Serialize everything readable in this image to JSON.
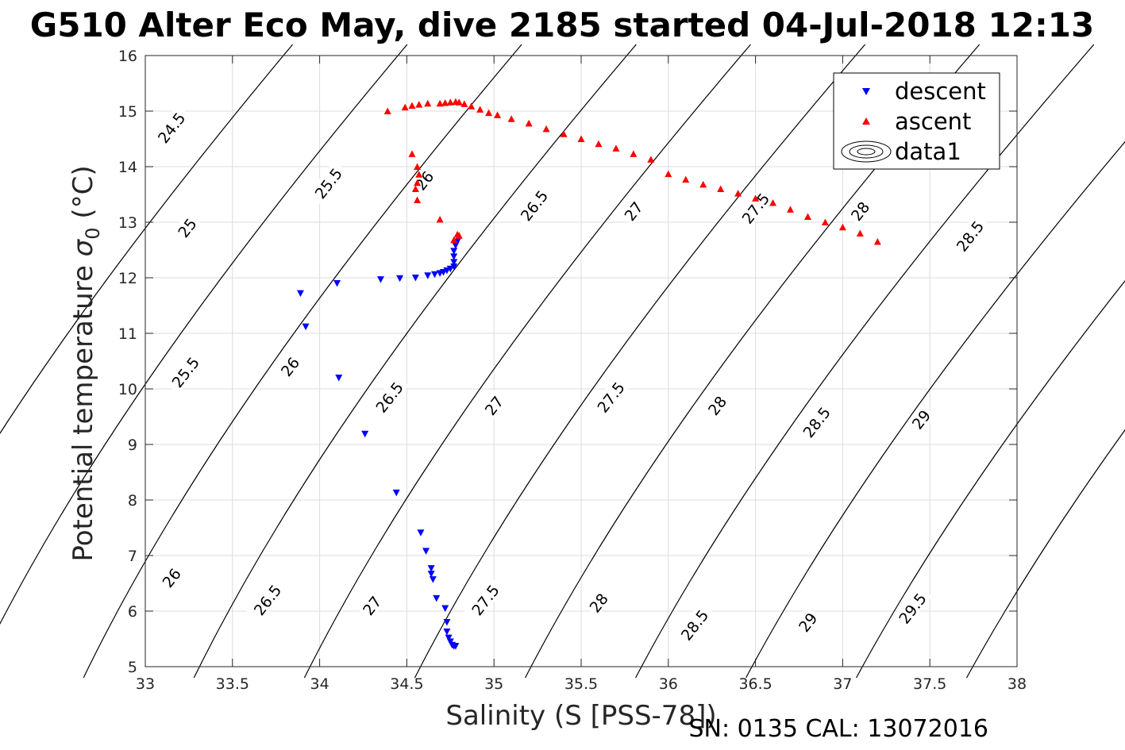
{
  "chart_data": {
    "type": "scatter",
    "title": "G510 Alter Eco May, dive 2185 started 04-Jul-2018 12:13",
    "xlabel": "Salinity (S [PSS-78])",
    "ylabel": "Potential temperature σ 0 (°C)",
    "ylabel_parts": {
      "main": "Potential temperature ",
      "sigma": "σ",
      "sub": "0",
      "unit": " (°C)"
    },
    "footer": "SN: 0135  CAL: 13072016",
    "xlim": [
      33,
      38
    ],
    "ylim": [
      5,
      16
    ],
    "x_ticks": [
      "33",
      "33.5",
      "34",
      "34.5",
      "35",
      "35.5",
      "36",
      "36.5",
      "37",
      "37.5",
      "38"
    ],
    "y_ticks": [
      "5",
      "6",
      "7",
      "8",
      "9",
      "10",
      "11",
      "12",
      "13",
      "14",
      "15",
      "16"
    ],
    "grid": true,
    "legend": {
      "placement": "top-right",
      "entries": [
        {
          "label": "descent",
          "marker": "triangle-down",
          "color": "#0000ff"
        },
        {
          "label": "ascent",
          "marker": "triangle-up",
          "color": "#ff0000"
        },
        {
          "label": "data1",
          "marker": "contour",
          "color": "#000000"
        }
      ]
    },
    "density_contours": {
      "levels": [
        24.5,
        25,
        25.5,
        26,
        26.5,
        27,
        27.5,
        28,
        28.5,
        29,
        29.5
      ],
      "labels": [
        {
          "text": "24.5",
          "x": 33.15,
          "y": 14.7
        },
        {
          "text": "25",
          "x": 33.24,
          "y": 12.9
        },
        {
          "text": "25.5",
          "x": 33.23,
          "y": 10.3
        },
        {
          "text": "26",
          "x": 33.15,
          "y": 6.6
        },
        {
          "text": "25.5",
          "x": 34.05,
          "y": 13.7
        },
        {
          "text": "26",
          "x": 34.6,
          "y": 13.75
        },
        {
          "text": "26.5",
          "x": 35.23,
          "y": 13.3
        },
        {
          "text": "27",
          "x": 35.8,
          "y": 13.2
        },
        {
          "text": "27.5",
          "x": 36.5,
          "y": 13.25
        },
        {
          "text": "28",
          "x": 37.1,
          "y": 13.2
        },
        {
          "text": "28.5",
          "x": 37.73,
          "y": 12.75
        },
        {
          "text": "26",
          "x": 33.83,
          "y": 10.4
        },
        {
          "text": "26.5",
          "x": 34.4,
          "y": 9.85
        },
        {
          "text": "27",
          "x": 35.0,
          "y": 9.7
        },
        {
          "text": "27.5",
          "x": 35.67,
          "y": 9.85
        },
        {
          "text": "28",
          "x": 36.28,
          "y": 9.7
        },
        {
          "text": "28.5",
          "x": 36.85,
          "y": 9.4
        },
        {
          "text": "29",
          "x": 37.45,
          "y": 9.45
        },
        {
          "text": "26.5",
          "x": 33.7,
          "y": 6.2
        },
        {
          "text": "27",
          "x": 34.3,
          "y": 6.1
        },
        {
          "text": "27.5",
          "x": 34.95,
          "y": 6.2
        },
        {
          "text": "28",
          "x": 35.6,
          "y": 6.15
        },
        {
          "text": "28.5",
          "x": 36.15,
          "y": 5.75
        },
        {
          "text": "29",
          "x": 36.8,
          "y": 5.8
        },
        {
          "text": "29.5",
          "x": 37.4,
          "y": 6.05
        }
      ]
    },
    "series": [
      {
        "name": "descent",
        "marker": "triangle-down",
        "color": "#0000ff",
        "points": [
          [
            33.89,
            11.72
          ],
          [
            33.92,
            11.12
          ],
          [
            34.1,
            11.9
          ],
          [
            34.11,
            10.2
          ],
          [
            34.26,
            9.19
          ],
          [
            34.35,
            11.97
          ],
          [
            34.46,
            11.99
          ],
          [
            34.55,
            12.0
          ],
          [
            34.62,
            12.04
          ],
          [
            34.66,
            12.06
          ],
          [
            34.69,
            12.08
          ],
          [
            34.71,
            12.1
          ],
          [
            34.73,
            12.13
          ],
          [
            34.75,
            12.16
          ],
          [
            34.77,
            12.2
          ],
          [
            34.77,
            12.28
          ],
          [
            34.77,
            12.38
          ],
          [
            34.77,
            12.48
          ],
          [
            34.78,
            12.58
          ],
          [
            34.79,
            12.65
          ],
          [
            34.44,
            8.13
          ],
          [
            34.58,
            7.41
          ],
          [
            34.61,
            7.08
          ],
          [
            34.64,
            6.77
          ],
          [
            34.64,
            6.67
          ],
          [
            34.65,
            6.57
          ],
          [
            34.67,
            6.23
          ],
          [
            34.72,
            6.05
          ],
          [
            34.73,
            5.8
          ],
          [
            34.73,
            5.63
          ],
          [
            34.74,
            5.52
          ],
          [
            34.75,
            5.45
          ],
          [
            34.76,
            5.39
          ],
          [
            34.77,
            5.37
          ],
          [
            34.78,
            5.37
          ]
        ]
      },
      {
        "name": "ascent",
        "marker": "triangle-up",
        "color": "#ff0000",
        "points": [
          [
            34.39,
            15.0
          ],
          [
            34.49,
            15.07
          ],
          [
            34.53,
            15.1
          ],
          [
            34.57,
            15.12
          ],
          [
            34.62,
            15.14
          ],
          [
            34.69,
            15.14
          ],
          [
            34.72,
            15.15
          ],
          [
            34.75,
            15.16
          ],
          [
            34.78,
            15.17
          ],
          [
            34.8,
            15.16
          ],
          [
            34.83,
            15.13
          ],
          [
            34.87,
            15.09
          ],
          [
            34.92,
            15.03
          ],
          [
            34.97,
            14.97
          ],
          [
            35.02,
            14.93
          ],
          [
            35.1,
            14.86
          ],
          [
            35.2,
            14.78
          ],
          [
            35.3,
            14.68
          ],
          [
            35.4,
            14.59
          ],
          [
            35.5,
            14.5
          ],
          [
            35.6,
            14.41
          ],
          [
            35.7,
            14.33
          ],
          [
            35.8,
            14.23
          ],
          [
            35.9,
            14.13
          ],
          [
            36.0,
            13.87
          ],
          [
            36.1,
            13.77
          ],
          [
            36.2,
            13.68
          ],
          [
            36.3,
            13.6
          ],
          [
            36.4,
            13.52
          ],
          [
            36.5,
            13.43
          ],
          [
            36.6,
            13.35
          ],
          [
            36.7,
            13.23
          ],
          [
            36.8,
            13.1
          ],
          [
            36.9,
            13.0
          ],
          [
            37.0,
            12.91
          ],
          [
            37.1,
            12.8
          ],
          [
            37.2,
            12.65
          ],
          [
            34.53,
            14.23
          ],
          [
            34.56,
            14.0
          ],
          [
            34.57,
            13.86
          ],
          [
            34.56,
            13.71
          ],
          [
            34.55,
            13.6
          ],
          [
            34.56,
            13.4
          ],
          [
            34.69,
            13.05
          ],
          [
            34.79,
            12.78
          ],
          [
            34.8,
            12.76
          ],
          [
            34.77,
            12.68
          ]
        ]
      }
    ]
  }
}
